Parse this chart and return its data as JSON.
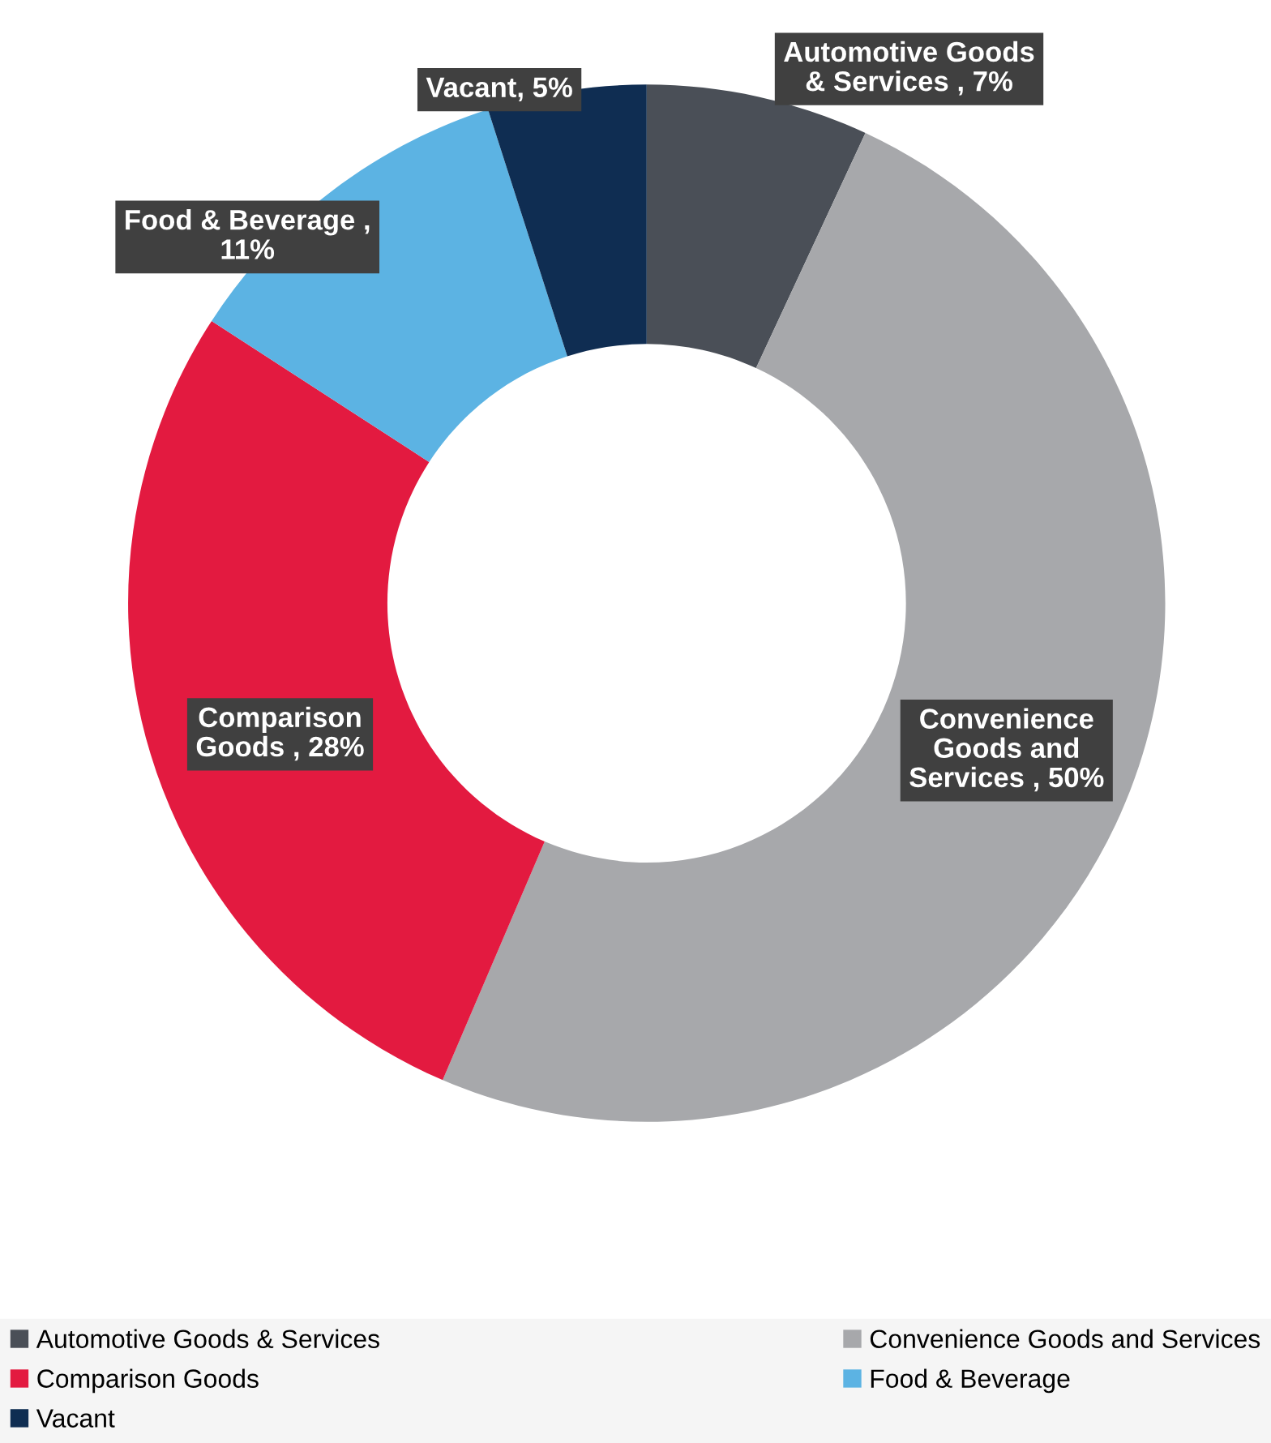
{
  "chart_data": {
    "type": "donut",
    "categories": [
      "Automotive Goods & Services",
      "Convenience Goods and Services",
      "Comparison Goods",
      "Food & Beverage",
      "Vacant"
    ],
    "values": [
      7,
      50,
      28,
      11,
      5
    ],
    "colors": [
      "#4a4f57",
      "#a7a8ab",
      "#e31a40",
      "#5cb3e3",
      "#0f2d52"
    ],
    "value_labels": [
      "Automotive Goods\n& Services , 7%",
      "Convenience\nGoods and\nServices , 50%",
      "Comparison\nGoods , 28%",
      "Food & Beverage ,\n11%",
      "Vacant, 5%"
    ],
    "legend": "bottom"
  }
}
